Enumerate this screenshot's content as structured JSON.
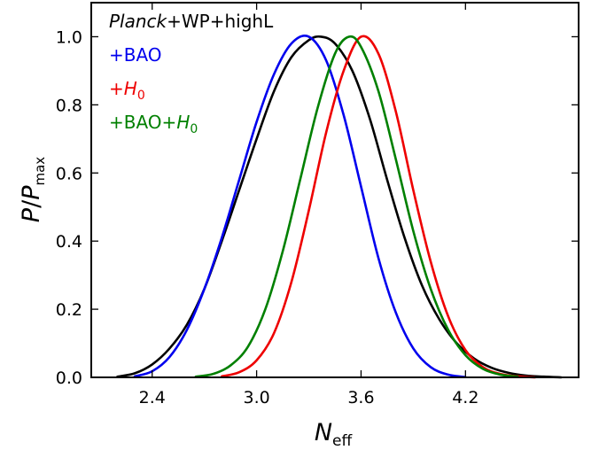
{
  "chart_data": {
    "type": "line",
    "xlabel": {
      "main": "N",
      "sub": "eff"
    },
    "ylabel": {
      "p1": "P",
      "sep": "/",
      "p2": "P",
      "sub": "max"
    },
    "xlim": [
      2.05,
      4.85
    ],
    "ylim": [
      0.0,
      1.1
    ],
    "xticks": [
      2.4,
      3.0,
      3.6,
      4.2
    ],
    "xtick_labels": [
      "2.4",
      "3.0",
      "3.6",
      "4.2"
    ],
    "yticks": [
      0.0,
      0.2,
      0.4,
      0.6,
      0.8,
      1.0
    ],
    "ytick_labels": [
      "0.0",
      "0.2",
      "0.4",
      "0.6",
      "0.8",
      "1.0"
    ],
    "grid": false,
    "legend_placement": "top-left",
    "legend": [
      {
        "italic": "Planck",
        "text": "+WP+highL",
        "color": "#000000"
      },
      {
        "text": "+BAO",
        "color": "#0000ee"
      },
      {
        "text": "+",
        "italic": "H",
        "sub": "0",
        "color": "#ee0000"
      },
      {
        "text": "+BAO+",
        "italic": "H",
        "sub": "0",
        "color": "#008000"
      }
    ],
    "series": [
      {
        "color": "#000000",
        "x": [
          2.2,
          2.3,
          2.4,
          2.5,
          2.6,
          2.7,
          2.8,
          2.9,
          3.0,
          3.1,
          3.2,
          3.3,
          3.37,
          3.45,
          3.55,
          3.65,
          3.75,
          3.85,
          3.95,
          4.05,
          4.15,
          4.25,
          4.35,
          4.45,
          4.55,
          4.65,
          4.75
        ],
        "y": [
          0.002,
          0.012,
          0.038,
          0.085,
          0.155,
          0.26,
          0.4,
          0.55,
          0.7,
          0.84,
          0.94,
          0.99,
          1.0,
          0.98,
          0.9,
          0.76,
          0.58,
          0.41,
          0.27,
          0.17,
          0.1,
          0.055,
          0.028,
          0.013,
          0.005,
          0.002,
          0.0
        ]
      },
      {
        "color": "#0000ee",
        "x": [
          2.3,
          2.4,
          2.5,
          2.6,
          2.7,
          2.8,
          2.9,
          3.0,
          3.1,
          3.2,
          3.3,
          3.4,
          3.5,
          3.6,
          3.7,
          3.8,
          3.9,
          4.0,
          4.1,
          4.2
        ],
        "y": [
          0.003,
          0.018,
          0.06,
          0.14,
          0.26,
          0.41,
          0.58,
          0.75,
          0.89,
          0.98,
          1.0,
          0.93,
          0.77,
          0.56,
          0.35,
          0.19,
          0.085,
          0.03,
          0.008,
          0.001
        ]
      },
      {
        "color": "#ee0000",
        "x": [
          2.8,
          2.9,
          3.0,
          3.1,
          3.2,
          3.3,
          3.4,
          3.5,
          3.6,
          3.7,
          3.8,
          3.9,
          4.0,
          4.1,
          4.2,
          4.3,
          4.4,
          4.5,
          4.6
        ],
        "y": [
          0.003,
          0.015,
          0.05,
          0.13,
          0.28,
          0.49,
          0.72,
          0.9,
          1.0,
          0.95,
          0.78,
          0.55,
          0.34,
          0.18,
          0.08,
          0.03,
          0.01,
          0.003,
          0.0
        ]
      },
      {
        "color": "#008000",
        "x": [
          2.65,
          2.75,
          2.85,
          2.95,
          3.05,
          3.15,
          3.25,
          3.35,
          3.45,
          3.53,
          3.6,
          3.7,
          3.8,
          3.9,
          4.0,
          4.1,
          4.2,
          4.3,
          4.4,
          4.5
        ],
        "y": [
          0.002,
          0.01,
          0.035,
          0.09,
          0.2,
          0.37,
          0.58,
          0.79,
          0.95,
          1.0,
          0.97,
          0.84,
          0.64,
          0.43,
          0.26,
          0.14,
          0.065,
          0.025,
          0.008,
          0.002
        ]
      }
    ]
  }
}
